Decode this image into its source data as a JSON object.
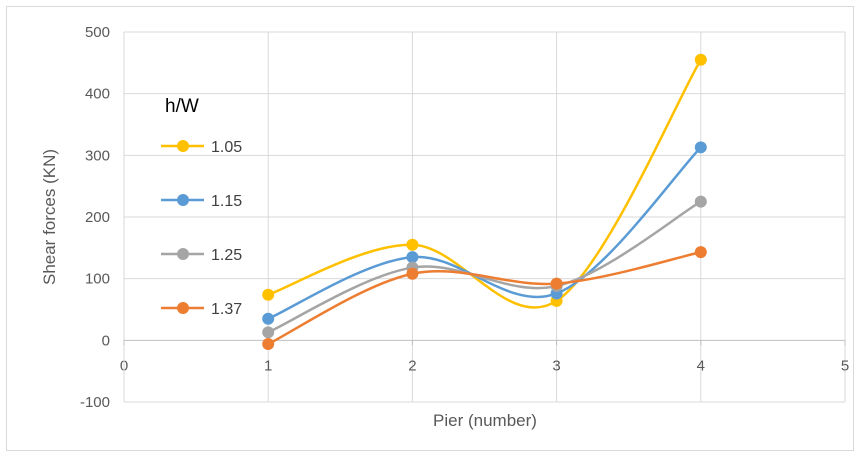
{
  "chart_data": {
    "type": "line",
    "smooth": true,
    "xlabel": "Pier (number)",
    "ylabel": "Shear forces (KN)",
    "xlim": [
      0,
      5
    ],
    "ylim": [
      -100,
      500
    ],
    "x_ticks": [
      "0",
      "1",
      "2",
      "3",
      "4",
      "5"
    ],
    "y_ticks": [
      "500",
      "400",
      "300",
      "200",
      "100",
      "0",
      "-100"
    ],
    "grid": true,
    "legend_title": "h/W",
    "legend_position": "left",
    "x": [
      1,
      2,
      3,
      4
    ],
    "series": [
      {
        "name": "1.05",
        "color": "#ffc000",
        "values": [
          74,
          155,
          64,
          455
        ]
      },
      {
        "name": "1.15",
        "color": "#5b9bd5",
        "values": [
          35,
          135,
          76,
          313
        ]
      },
      {
        "name": "1.25",
        "color": "#a5a5a5",
        "values": [
          13,
          118,
          88,
          225
        ]
      },
      {
        "name": "1.37",
        "color": "#ed7d31",
        "values": [
          -6,
          108,
          92,
          143
        ]
      }
    ]
  }
}
